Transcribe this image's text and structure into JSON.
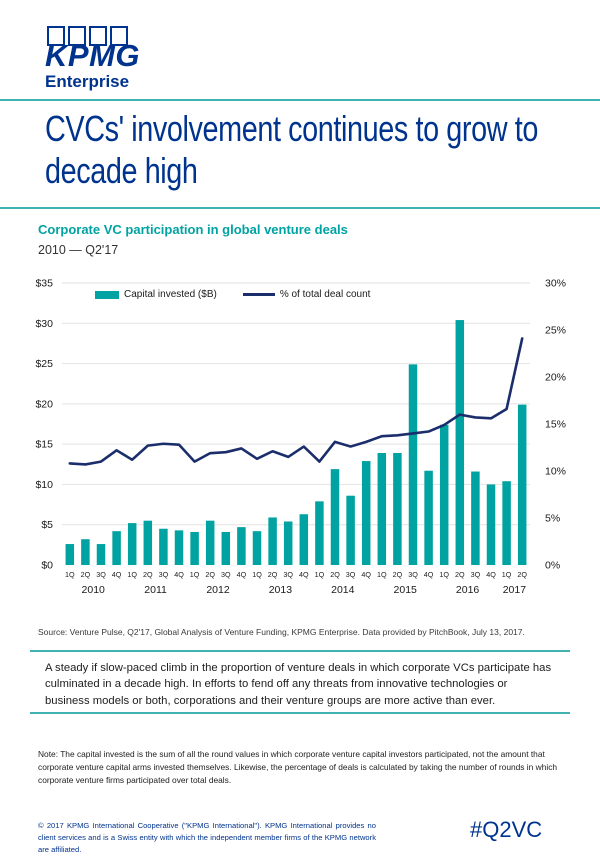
{
  "header": {
    "logo_word": "KPMG",
    "logo_sub": "Enterprise"
  },
  "page_title": "CVCs' involvement continues to grow to decade high",
  "chart": {
    "title": "Corporate VC participation in global venture deals",
    "subtitle": "2010 — Q2'17"
  },
  "chart_data": {
    "type": "combo-bar-line",
    "title": "Corporate VC participation in global venture deals",
    "subtitle": "2010 — Q2'17",
    "grid": true,
    "legend_position": "top-left",
    "categories": [
      "1Q",
      "2Q",
      "3Q",
      "4Q",
      "1Q",
      "2Q",
      "3Q",
      "4Q",
      "1Q",
      "2Q",
      "3Q",
      "4Q",
      "1Q",
      "2Q",
      "3Q",
      "4Q",
      "1Q",
      "2Q",
      "3Q",
      "4Q",
      "1Q",
      "2Q",
      "3Q",
      "4Q",
      "1Q",
      "2Q",
      "3Q",
      "4Q",
      "1Q",
      "2Q"
    ],
    "year_groups": [
      {
        "label": "2010",
        "span": 4
      },
      {
        "label": "2011",
        "span": 4
      },
      {
        "label": "2012",
        "span": 4
      },
      {
        "label": "2013",
        "span": 4
      },
      {
        "label": "2014",
        "span": 4
      },
      {
        "label": "2015",
        "span": 4
      },
      {
        "label": "2016",
        "span": 4
      },
      {
        "label": "2017",
        "span": 2
      }
    ],
    "left_axis": {
      "min": 0,
      "max": 35,
      "step": 5,
      "ticks": [
        "$0",
        "$5",
        "$10",
        "$15",
        "$20",
        "$25",
        "$30",
        "$35"
      ]
    },
    "right_axis": {
      "min": 0,
      "max": 30,
      "step": 5,
      "ticks": [
        "0%",
        "5%",
        "10%",
        "15%",
        "20%",
        "25%",
        "30%"
      ]
    },
    "series": [
      {
        "name": "Capital invested ($B)",
        "type": "bar",
        "axis": "left",
        "color": "#00A3A1",
        "values": [
          2.6,
          3.2,
          2.6,
          4.2,
          5.2,
          5.5,
          4.5,
          4.3,
          4.1,
          5.5,
          4.1,
          4.7,
          4.2,
          5.9,
          5.4,
          6.3,
          7.9,
          11.9,
          8.6,
          12.9,
          13.9,
          13.9,
          24.9,
          11.7,
          17.4,
          30.4,
          11.6,
          10.0,
          10.4,
          19.9
        ]
      },
      {
        "name": "% of total deal count",
        "type": "line",
        "axis": "right",
        "color": "#1B2E6B",
        "values": [
          10.8,
          10.7,
          11.0,
          12.2,
          11.2,
          12.7,
          12.9,
          12.8,
          11.0,
          11.9,
          12.0,
          12.4,
          11.3,
          12.1,
          11.5,
          12.6,
          11.0,
          13.1,
          12.6,
          13.1,
          13.7,
          13.8,
          14.0,
          14.2,
          14.9,
          16.0,
          15.7,
          15.6,
          16.6,
          24.1
        ]
      }
    ]
  },
  "source": "Source: Venture Pulse, Q2'17, Global Analysis of Venture Funding, KPMG Enterprise. Data provided by PitchBook, July 13, 2017.",
  "callout": "A steady if slow-paced climb in the proportion of venture deals in which corporate VCs participate has culminated in a decade high. In efforts to fend off any threats from innovative technologies or business models or both, corporations and their venture groups are more active than ever.",
  "note": "Note: The capital invested is the sum of all the round values in which corporate venture capital investors participated, not the amount that corporate venture capital arms invested themselves. Likewise, the percentage of deals is calculated by taking the number of rounds in which corporate venture firms participated over total deals.",
  "footer": {
    "copyright": "© 2017 KPMG International Cooperative (\"KPMG International\"). KPMG International provides no client services and is a Swiss entity with which the independent member firms of the KPMG network are affiliated.",
    "hashtag": "#Q2VC"
  },
  "colors": {
    "kpmg_blue": "#00338D",
    "teal": "#00A3A1",
    "line_navy": "#1B2E6B",
    "rule_teal": "#3FB3B1",
    "gridline": "#E2E2E2"
  }
}
